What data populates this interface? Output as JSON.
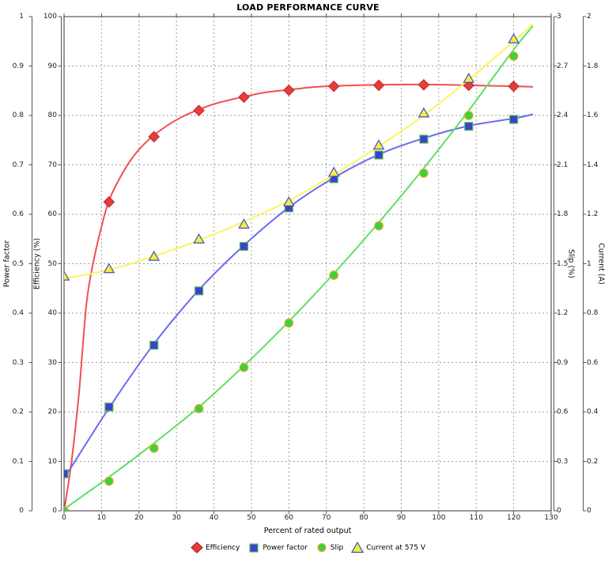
{
  "title": "LOAD PERFORMANCE CURVE",
  "chart_data": {
    "type": "line",
    "title": "LOAD PERFORMANCE CURVE",
    "xlabel": "Percent of rated output",
    "x_range": [
      0,
      130
    ],
    "x_ticks": [
      "0",
      "10",
      "20",
      "30",
      "40",
      "50",
      "60",
      "70",
      "80",
      "90",
      "100",
      "110",
      "120",
      "130"
    ],
    "grid": true,
    "grid_color": "#9e9e9e",
    "border_color": "#333333",
    "legend_position": "bottom",
    "axes": [
      {
        "id": "power_factor",
        "label": "Power factor",
        "side": "left",
        "range": [
          0,
          1
        ],
        "ticks": [
          "0",
          "0.1",
          "0.2",
          "0.3",
          "0.4",
          "0.5",
          "0.6",
          "0.7",
          "0.8",
          "0.9",
          "1"
        ]
      },
      {
        "id": "efficiency",
        "label": "Efficiency (%)",
        "side": "left",
        "range": [
          0,
          100
        ],
        "ticks": [
          "0",
          "10",
          "20",
          "30",
          "40",
          "50",
          "60",
          "70",
          "80",
          "90",
          "100"
        ]
      },
      {
        "id": "slip",
        "label": "Slip (%)",
        "side": "right",
        "range": [
          0,
          3
        ],
        "ticks": [
          "0",
          "0.3",
          "0.6",
          "0.9",
          "1.2",
          "1.5",
          "1.8",
          "2.1",
          "2.4",
          "2.7",
          "3"
        ]
      },
      {
        "id": "current",
        "label": "Current (A)",
        "side": "right",
        "range": [
          0,
          2
        ],
        "ticks": [
          "0",
          "0.2",
          "0.4",
          "0.6",
          "0.8",
          "1",
          "1.2",
          "1.4",
          "1.6",
          "1.8",
          "2"
        ]
      }
    ],
    "x": [
      0,
      12,
      24,
      36,
      48,
      60,
      72,
      84,
      96,
      108,
      120
    ],
    "series": [
      {
        "name": "Efficiency",
        "axis": "efficiency",
        "marker": "diamond",
        "color": "#F05050",
        "marker_fill": "#E83C3C",
        "marker_stroke": "#C03030",
        "values": [
          0,
          62.5,
          75.7,
          81.0,
          83.7,
          85.1,
          85.9,
          86.1,
          86.2,
          86.1,
          85.9
        ],
        "line": [
          [
            0,
            0
          ],
          [
            2,
            10
          ],
          [
            4,
            24
          ],
          [
            6,
            42
          ],
          [
            8,
            51
          ],
          [
            10,
            57.5
          ],
          [
            12,
            62.8
          ],
          [
            15,
            67.5
          ],
          [
            18,
            71.2
          ],
          [
            21,
            73.9
          ],
          [
            24,
            76.0
          ],
          [
            28,
            78.2
          ],
          [
            32,
            79.9
          ],
          [
            36,
            81.2
          ],
          [
            40,
            82.3
          ],
          [
            44,
            83.1
          ],
          [
            48,
            83.8
          ],
          [
            54,
            84.7
          ],
          [
            60,
            85.2
          ],
          [
            66,
            85.7
          ],
          [
            72,
            85.95
          ],
          [
            78,
            86.1
          ],
          [
            84,
            86.2
          ],
          [
            90,
            86.25
          ],
          [
            96,
            86.25
          ],
          [
            102,
            86.2
          ],
          [
            108,
            86.1
          ],
          [
            114,
            86.0
          ],
          [
            120,
            85.9
          ],
          [
            125,
            85.8
          ]
        ]
      },
      {
        "name": "Power factor",
        "axis": "power_factor",
        "marker": "square",
        "color": "#6A6AF0",
        "marker_fill": "#4040CC",
        "marker_stroke": "#4FBE4F",
        "values": [
          0.075,
          0.21,
          0.335,
          0.445,
          0.535,
          0.613,
          0.672,
          0.72,
          0.752,
          0.778,
          0.792
        ],
        "line": [
          [
            0,
            0.065
          ],
          [
            12,
            0.208
          ],
          [
            24,
            0.338
          ],
          [
            36,
            0.447
          ],
          [
            48,
            0.537
          ],
          [
            60,
            0.614
          ],
          [
            72,
            0.674
          ],
          [
            84,
            0.721
          ],
          [
            96,
            0.754
          ],
          [
            108,
            0.779
          ],
          [
            120,
            0.794
          ],
          [
            125,
            0.802
          ]
        ]
      },
      {
        "name": "Slip",
        "axis": "slip",
        "marker": "circle",
        "color": "#5FE05F",
        "marker_fill": "#3BD23B",
        "marker_stroke": "#EFA93B",
        "values": [
          0,
          0.18,
          0.38,
          0.62,
          0.87,
          1.14,
          1.43,
          1.73,
          2.05,
          2.4,
          2.76
        ],
        "line": [
          [
            0,
            0.01
          ],
          [
            12,
            0.205
          ],
          [
            24,
            0.41
          ],
          [
            36,
            0.63
          ],
          [
            48,
            0.88
          ],
          [
            60,
            1.15
          ],
          [
            72,
            1.44
          ],
          [
            84,
            1.75
          ],
          [
            96,
            2.08
          ],
          [
            108,
            2.43
          ],
          [
            120,
            2.8
          ],
          [
            125,
            2.94
          ]
        ]
      },
      {
        "name": "Current at 575 V",
        "axis": "current",
        "marker": "triangle",
        "color": "#FBF55E",
        "marker_fill": "#F8EC41",
        "marker_stroke": "#3C50C8",
        "values": [
          0.95,
          0.98,
          1.03,
          1.1,
          1.16,
          1.25,
          1.37,
          1.48,
          1.61,
          1.75,
          1.91
        ],
        "line": [
          [
            0,
            0.94
          ],
          [
            12,
            0.975
          ],
          [
            24,
            1.03
          ],
          [
            36,
            1.095
          ],
          [
            48,
            1.17
          ],
          [
            60,
            1.255
          ],
          [
            72,
            1.36
          ],
          [
            84,
            1.475
          ],
          [
            96,
            1.6
          ],
          [
            108,
            1.745
          ],
          [
            120,
            1.9
          ],
          [
            125,
            1.97
          ]
        ]
      }
    ]
  }
}
